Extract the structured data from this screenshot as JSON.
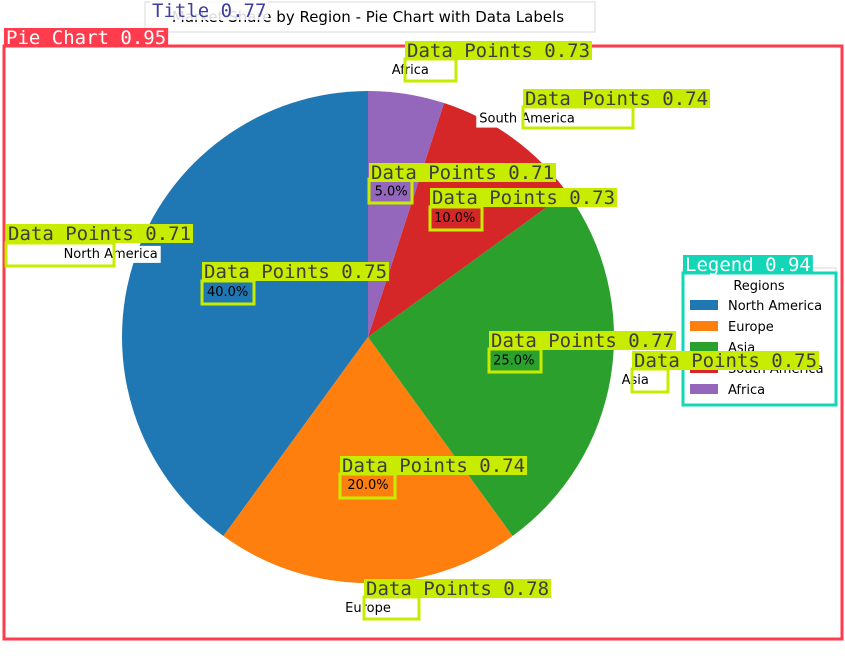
{
  "chart_data": {
    "type": "pie",
    "title": "Market Share by Region - Pie Chart with Data Labels",
    "categories": [
      "North America",
      "Europe",
      "Asia",
      "South America",
      "Africa"
    ],
    "values": [
      40,
      20,
      25,
      10,
      5
    ],
    "value_labels": [
      "40.0%",
      "20.0%",
      "25.0%",
      "10.0%",
      "5.0%"
    ],
    "colors": [
      "#1f77b4",
      "#ff7f0e",
      "#2ca02c",
      "#d62728",
      "#9467bd"
    ],
    "start_angle_deg": 90,
    "direction": "counterclockwise",
    "legend": {
      "title": "Regions",
      "placement": "right",
      "entries": [
        "North America",
        "Europe",
        "Asia",
        "South America",
        "Africa"
      ]
    }
  },
  "detections": [
    {
      "label": "Title 0.77",
      "color": "#3f3f9f",
      "kind": "title"
    },
    {
      "label": "Pie Chart 0.95",
      "color": "#ff3b4e",
      "kind": "chart"
    },
    {
      "label": "Legend 0.94",
      "color": "#12d6b6",
      "kind": "legend"
    },
    {
      "label": "Data Points 0.73",
      "color": "#c8ec00",
      "kind": "datapoint"
    },
    {
      "label": "Data Points 0.74",
      "color": "#c8ec00",
      "kind": "datapoint"
    },
    {
      "label": "Data Points 0.71",
      "color": "#c8ec00",
      "kind": "datapoint"
    },
    {
      "label": "Data Points 0.73",
      "color": "#c8ec00",
      "kind": "datapoint"
    },
    {
      "label": "Data Points 0.71",
      "color": "#c8ec00",
      "kind": "datapoint"
    },
    {
      "label": "Data Points 0.75",
      "color": "#c8ec00",
      "kind": "datapoint"
    },
    {
      "label": "Data Points 0.77",
      "color": "#c8ec00",
      "kind": "datapoint"
    },
    {
      "label": "Data Points 0.75",
      "color": "#c8ec00",
      "kind": "datapoint"
    },
    {
      "label": "Data Points 0.74",
      "color": "#c8ec00",
      "kind": "datapoint"
    },
    {
      "label": "Data Points 0.78",
      "color": "#c8ec00",
      "kind": "datapoint"
    }
  ]
}
